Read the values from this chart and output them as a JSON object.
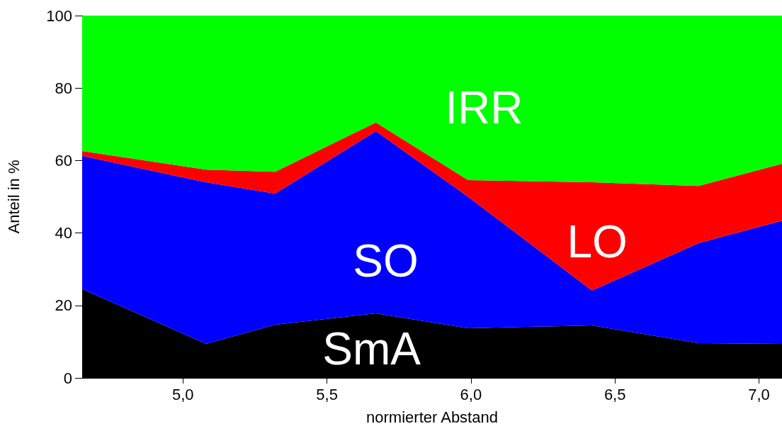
{
  "chart_data": {
    "type": "area",
    "stacked": true,
    "xlabel": "normierter Abstand",
    "ylabel": "Anteil in %",
    "x": [
      4.65,
      5.08,
      5.32,
      5.67,
      5.99,
      6.42,
      6.79,
      7.08
    ],
    "xlim": [
      4.65,
      7.08
    ],
    "xticks": [
      {
        "value": 5,
        "label": "5,0"
      },
      {
        "value": 5.5,
        "label": "5,5"
      },
      {
        "value": 6,
        "label": "6,0"
      },
      {
        "value": 6.5,
        "label": "6,5"
      },
      {
        "value": 7,
        "label": "7,0"
      }
    ],
    "ylim": [
      0,
      100
    ],
    "yticks": [
      0,
      20,
      40,
      60,
      80,
      100
    ],
    "legend": false,
    "series": [
      {
        "name": "SmA",
        "color": "#000000",
        "values": [
          24.5,
          9.4,
          14.7,
          17.8,
          13.7,
          14.5,
          9.6,
          9.4
        ]
      },
      {
        "name": "SO",
        "color": "#0000ff",
        "values": [
          36.8,
          44.6,
          36.2,
          50.3,
          36.3,
          9.6,
          27.6,
          34.0
        ]
      },
      {
        "name": "LO",
        "color": "#ff0000",
        "values": [
          1.3,
          3.5,
          6.0,
          2.4,
          4.6,
          29.9,
          15.8,
          15.7
        ]
      },
      {
        "name": "IRR",
        "color": "#00ff00",
        "values": [
          37.4,
          42.5,
          43.1,
          29.5,
          45.4,
          46.0,
          47.0,
          40.9
        ]
      }
    ]
  }
}
